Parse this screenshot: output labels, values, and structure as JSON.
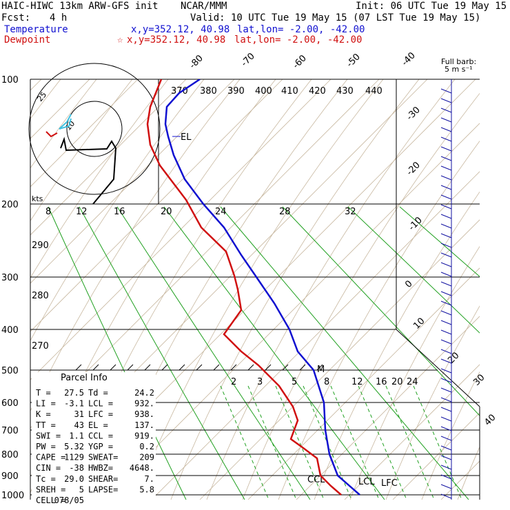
{
  "header": {
    "model": "HAIC-HIWC 13km ARW-GFS init",
    "org": "NCAR/MMM",
    "init": "Init: 06 UTC Tue 19 May 15",
    "fcst_label": "Fcst:",
    "fcst_value": "4 h",
    "valid": "Valid: 10 UTC Tue 19 May 15 (07 LST Tue 19 May 15)",
    "temp_label": "Temperature",
    "temp_xy": "x,y=352.12, 40.98",
    "temp_latlon": "lat,lon= -2.00, -42.00",
    "dew_label": "Dewpoint",
    "dew_xy": "x,y=352.12, 40.98",
    "dew_latlon": "lat,lon= -2.00, -42.00",
    "barb_title1": "Full barb:",
    "barb_title2": "5 m s⁻¹"
  },
  "chart_data": {
    "type": "line",
    "pressure_levels": [
      100,
      200,
      300,
      400,
      500,
      600,
      700,
      800,
      900,
      1000
    ],
    "isotherm_labels": [
      "-80",
      "-70",
      "-60",
      "-50",
      "-40",
      "-30",
      "-20",
      "-10",
      "0",
      "10",
      "20",
      "30",
      "40"
    ],
    "theta_labels_top": [
      "370",
      "380",
      "390",
      "400",
      "410",
      "420",
      "430",
      "440"
    ],
    "theta_labels_side": [
      "290",
      "280",
      "270"
    ],
    "mixing_ratio_top": [
      "8",
      "12",
      "16",
      "20",
      "24",
      "28",
      "32"
    ],
    "mixing_ratio_low": [
      "2",
      "3",
      "5",
      "8",
      "12",
      "16",
      "20",
      "24"
    ],
    "annotations": [
      "EL",
      "CCL",
      "LCL",
      "LFC",
      "M"
    ],
    "series": [
      {
        "name": "Temperature",
        "color": "#1010d0"
      },
      {
        "name": "Dewpoint",
        "color": "#d01010"
      }
    ],
    "hodograph": {
      "rings": [
        "10",
        "25"
      ],
      "unit": "kts"
    },
    "parcel_info": {
      "title": "Parcel Info",
      "rows": [
        [
          "T  =",
          "27.5",
          "Td =",
          "24.2"
        ],
        [
          "LI =",
          "-3.1",
          "LCL =",
          "932."
        ],
        [
          "K  =",
          "31",
          "LFC =",
          "938."
        ],
        [
          "TT =",
          "43",
          "EL  =",
          "137."
        ],
        [
          "SWI =",
          "1.1",
          "CCL =",
          "919."
        ],
        [
          "PW =",
          "5.32",
          "YGP =",
          "0.2"
        ],
        [
          "CAPE =",
          "1129",
          "SWEAT=",
          "209"
        ],
        [
          "CIN =",
          "-38",
          "HWBZ=",
          "4648."
        ],
        [
          "Tc =",
          "29.0",
          "SHEAR=",
          "7."
        ],
        [
          "SREH =",
          "5",
          "LAPSE=",
          "5.8"
        ],
        [
          "CELL =",
          "078/05",
          "",
          ""
        ]
      ]
    }
  }
}
